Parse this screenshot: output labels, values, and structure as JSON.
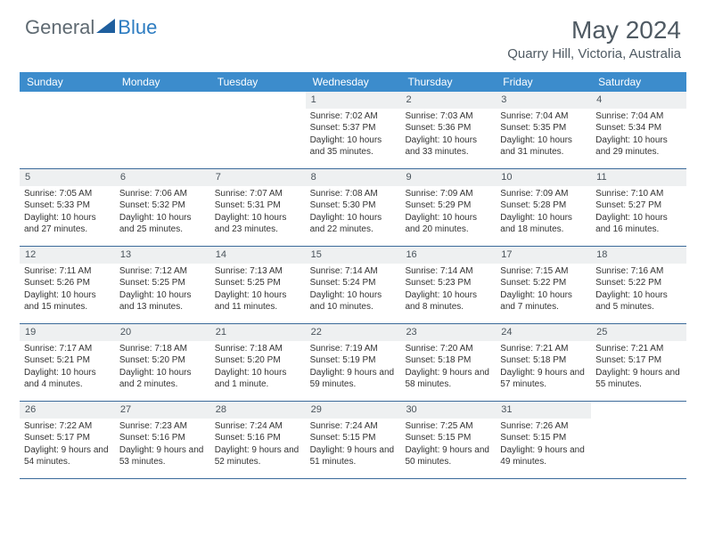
{
  "brand": {
    "general": "General",
    "blue": "Blue"
  },
  "title": {
    "month": "May 2024",
    "location": "Quarry Hill, Victoria, Australia"
  },
  "colors": {
    "header_bar": "#3c8ccc",
    "header_text": "#ffffff",
    "day_bar_bg": "#eef0f1",
    "border": "#3b6a9a",
    "logo_gray": "#5f6a72",
    "logo_blue": "#2d7cc1",
    "logo_mark": "#1f5f9e"
  },
  "weekdays": [
    "Sunday",
    "Monday",
    "Tuesday",
    "Wednesday",
    "Thursday",
    "Friday",
    "Saturday"
  ],
  "weeks": [
    [
      {
        "n": "",
        "sr": "",
        "ss": "",
        "dl": ""
      },
      {
        "n": "",
        "sr": "",
        "ss": "",
        "dl": ""
      },
      {
        "n": "",
        "sr": "",
        "ss": "",
        "dl": ""
      },
      {
        "n": "1",
        "sr": "Sunrise: 7:02 AM",
        "ss": "Sunset: 5:37 PM",
        "dl": "Daylight: 10 hours and 35 minutes."
      },
      {
        "n": "2",
        "sr": "Sunrise: 7:03 AM",
        "ss": "Sunset: 5:36 PM",
        "dl": "Daylight: 10 hours and 33 minutes."
      },
      {
        "n": "3",
        "sr": "Sunrise: 7:04 AM",
        "ss": "Sunset: 5:35 PM",
        "dl": "Daylight: 10 hours and 31 minutes."
      },
      {
        "n": "4",
        "sr": "Sunrise: 7:04 AM",
        "ss": "Sunset: 5:34 PM",
        "dl": "Daylight: 10 hours and 29 minutes."
      }
    ],
    [
      {
        "n": "5",
        "sr": "Sunrise: 7:05 AM",
        "ss": "Sunset: 5:33 PM",
        "dl": "Daylight: 10 hours and 27 minutes."
      },
      {
        "n": "6",
        "sr": "Sunrise: 7:06 AM",
        "ss": "Sunset: 5:32 PM",
        "dl": "Daylight: 10 hours and 25 minutes."
      },
      {
        "n": "7",
        "sr": "Sunrise: 7:07 AM",
        "ss": "Sunset: 5:31 PM",
        "dl": "Daylight: 10 hours and 23 minutes."
      },
      {
        "n": "8",
        "sr": "Sunrise: 7:08 AM",
        "ss": "Sunset: 5:30 PM",
        "dl": "Daylight: 10 hours and 22 minutes."
      },
      {
        "n": "9",
        "sr": "Sunrise: 7:09 AM",
        "ss": "Sunset: 5:29 PM",
        "dl": "Daylight: 10 hours and 20 minutes."
      },
      {
        "n": "10",
        "sr": "Sunrise: 7:09 AM",
        "ss": "Sunset: 5:28 PM",
        "dl": "Daylight: 10 hours and 18 minutes."
      },
      {
        "n": "11",
        "sr": "Sunrise: 7:10 AM",
        "ss": "Sunset: 5:27 PM",
        "dl": "Daylight: 10 hours and 16 minutes."
      }
    ],
    [
      {
        "n": "12",
        "sr": "Sunrise: 7:11 AM",
        "ss": "Sunset: 5:26 PM",
        "dl": "Daylight: 10 hours and 15 minutes."
      },
      {
        "n": "13",
        "sr": "Sunrise: 7:12 AM",
        "ss": "Sunset: 5:25 PM",
        "dl": "Daylight: 10 hours and 13 minutes."
      },
      {
        "n": "14",
        "sr": "Sunrise: 7:13 AM",
        "ss": "Sunset: 5:25 PM",
        "dl": "Daylight: 10 hours and 11 minutes."
      },
      {
        "n": "15",
        "sr": "Sunrise: 7:14 AM",
        "ss": "Sunset: 5:24 PM",
        "dl": "Daylight: 10 hours and 10 minutes."
      },
      {
        "n": "16",
        "sr": "Sunrise: 7:14 AM",
        "ss": "Sunset: 5:23 PM",
        "dl": "Daylight: 10 hours and 8 minutes."
      },
      {
        "n": "17",
        "sr": "Sunrise: 7:15 AM",
        "ss": "Sunset: 5:22 PM",
        "dl": "Daylight: 10 hours and 7 minutes."
      },
      {
        "n": "18",
        "sr": "Sunrise: 7:16 AM",
        "ss": "Sunset: 5:22 PM",
        "dl": "Daylight: 10 hours and 5 minutes."
      }
    ],
    [
      {
        "n": "19",
        "sr": "Sunrise: 7:17 AM",
        "ss": "Sunset: 5:21 PM",
        "dl": "Daylight: 10 hours and 4 minutes."
      },
      {
        "n": "20",
        "sr": "Sunrise: 7:18 AM",
        "ss": "Sunset: 5:20 PM",
        "dl": "Daylight: 10 hours and 2 minutes."
      },
      {
        "n": "21",
        "sr": "Sunrise: 7:18 AM",
        "ss": "Sunset: 5:20 PM",
        "dl": "Daylight: 10 hours and 1 minute."
      },
      {
        "n": "22",
        "sr": "Sunrise: 7:19 AM",
        "ss": "Sunset: 5:19 PM",
        "dl": "Daylight: 9 hours and 59 minutes."
      },
      {
        "n": "23",
        "sr": "Sunrise: 7:20 AM",
        "ss": "Sunset: 5:18 PM",
        "dl": "Daylight: 9 hours and 58 minutes."
      },
      {
        "n": "24",
        "sr": "Sunrise: 7:21 AM",
        "ss": "Sunset: 5:18 PM",
        "dl": "Daylight: 9 hours and 57 minutes."
      },
      {
        "n": "25",
        "sr": "Sunrise: 7:21 AM",
        "ss": "Sunset: 5:17 PM",
        "dl": "Daylight: 9 hours and 55 minutes."
      }
    ],
    [
      {
        "n": "26",
        "sr": "Sunrise: 7:22 AM",
        "ss": "Sunset: 5:17 PM",
        "dl": "Daylight: 9 hours and 54 minutes."
      },
      {
        "n": "27",
        "sr": "Sunrise: 7:23 AM",
        "ss": "Sunset: 5:16 PM",
        "dl": "Daylight: 9 hours and 53 minutes."
      },
      {
        "n": "28",
        "sr": "Sunrise: 7:24 AM",
        "ss": "Sunset: 5:16 PM",
        "dl": "Daylight: 9 hours and 52 minutes."
      },
      {
        "n": "29",
        "sr": "Sunrise: 7:24 AM",
        "ss": "Sunset: 5:15 PM",
        "dl": "Daylight: 9 hours and 51 minutes."
      },
      {
        "n": "30",
        "sr": "Sunrise: 7:25 AM",
        "ss": "Sunset: 5:15 PM",
        "dl": "Daylight: 9 hours and 50 minutes."
      },
      {
        "n": "31",
        "sr": "Sunrise: 7:26 AM",
        "ss": "Sunset: 5:15 PM",
        "dl": "Daylight: 9 hours and 49 minutes."
      },
      {
        "n": "",
        "sr": "",
        "ss": "",
        "dl": ""
      }
    ]
  ]
}
